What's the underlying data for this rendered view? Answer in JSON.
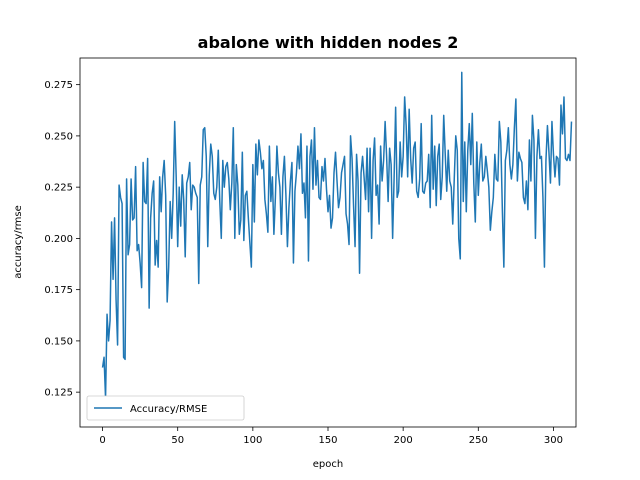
{
  "chart_data": {
    "type": "line",
    "title": "abalone with hidden nodes 2",
    "xlabel": "epoch",
    "ylabel": "accuracy/rmse",
    "xlim": [
      -15,
      315
    ],
    "ylim": [
      0.108,
      0.288
    ],
    "xticks": [
      0,
      50,
      100,
      150,
      200,
      250,
      300
    ],
    "yticks": [
      0.125,
      0.15,
      0.175,
      0.2,
      0.225,
      0.25,
      0.275
    ],
    "ytick_labels": [
      "0.125",
      "0.150",
      "0.175",
      "0.200",
      "0.225",
      "0.250",
      "0.275"
    ],
    "grid": false,
    "legend": {
      "placement": "lower-left",
      "entries": [
        "Accuracy/RMSE"
      ]
    },
    "series": [
      {
        "name": "Accuracy/RMSE",
        "color": "#1f77b4",
        "x_start": 0,
        "x_step": 1,
        "values": [
          0.137,
          0.142,
          0.122,
          0.163,
          0.15,
          0.16,
          0.208,
          0.18,
          0.21,
          0.17,
          0.148,
          0.226,
          0.22,
          0.217,
          0.142,
          0.141,
          0.229,
          0.192,
          0.197,
          0.229,
          0.209,
          0.21,
          0.235,
          0.194,
          0.197,
          0.188,
          0.176,
          0.237,
          0.218,
          0.217,
          0.239,
          0.166,
          0.21,
          0.222,
          0.228,
          0.187,
          0.199,
          0.186,
          0.23,
          0.213,
          0.23,
          0.238,
          0.221,
          0.169,
          0.186,
          0.218,
          0.2,
          0.222,
          0.257,
          0.23,
          0.196,
          0.225,
          0.206,
          0.231,
          0.219,
          0.191,
          0.227,
          0.23,
          0.237,
          0.214,
          0.226,
          0.225,
          0.222,
          0.22,
          0.178,
          0.226,
          0.23,
          0.253,
          0.254,
          0.24,
          0.196,
          0.231,
          0.246,
          0.24,
          0.222,
          0.219,
          0.225,
          0.243,
          0.218,
          0.2,
          0.238,
          0.225,
          0.235,
          0.237,
          0.229,
          0.214,
          0.227,
          0.254,
          0.2,
          0.236,
          0.226,
          0.202,
          0.209,
          0.242,
          0.199,
          0.221,
          0.223,
          0.21,
          0.198,
          0.186,
          0.236,
          0.208,
          0.246,
          0.231,
          0.248,
          0.242,
          0.234,
          0.238,
          0.219,
          0.212,
          0.203,
          0.245,
          0.218,
          0.23,
          0.202,
          0.22,
          0.245,
          0.232,
          0.225,
          0.202,
          0.23,
          0.24,
          0.221,
          0.196,
          0.215,
          0.228,
          0.237,
          0.188,
          0.223,
          0.232,
          0.245,
          0.234,
          0.251,
          0.222,
          0.227,
          0.21,
          0.245,
          0.189,
          0.24,
          0.248,
          0.224,
          0.254,
          0.226,
          0.238,
          0.22,
          0.219,
          0.235,
          0.228,
          0.239,
          0.224,
          0.213,
          0.221,
          0.205,
          0.21,
          0.232,
          0.242,
          0.228,
          0.215,
          0.22,
          0.232,
          0.236,
          0.24,
          0.212,
          0.207,
          0.197,
          0.25,
          0.239,
          0.216,
          0.196,
          0.241,
          0.228,
          0.183,
          0.232,
          0.24,
          0.23,
          0.219,
          0.244,
          0.213,
          0.244,
          0.2,
          0.238,
          0.249,
          0.221,
          0.226,
          0.207,
          0.245,
          0.228,
          0.238,
          0.257,
          0.24,
          0.218,
          0.244,
          0.236,
          0.2,
          0.23,
          0.264,
          0.22,
          0.223,
          0.247,
          0.23,
          0.24,
          0.269,
          0.255,
          0.23,
          0.263,
          0.239,
          0.227,
          0.244,
          0.247,
          0.223,
          0.22,
          0.229,
          0.256,
          0.223,
          0.222,
          0.227,
          0.228,
          0.241,
          0.215,
          0.26,
          0.224,
          0.245,
          0.216,
          0.24,
          0.246,
          0.219,
          0.23,
          0.26,
          0.241,
          0.223,
          0.243,
          0.228,
          0.225,
          0.207,
          0.229,
          0.25,
          0.243,
          0.2,
          0.19,
          0.281,
          0.218,
          0.247,
          0.213,
          0.243,
          0.256,
          0.236,
          0.261,
          0.227,
          0.208,
          0.247,
          0.221,
          0.237,
          0.246,
          0.228,
          0.23,
          0.24,
          0.233,
          0.225,
          0.204,
          0.213,
          0.22,
          0.241,
          0.229,
          0.228,
          0.257,
          0.247,
          0.214,
          0.186,
          0.238,
          0.243,
          0.254,
          0.236,
          0.229,
          0.236,
          0.254,
          0.268,
          0.228,
          0.242,
          0.239,
          0.237,
          0.22,
          0.217,
          0.228,
          0.214,
          0.248,
          0.228,
          0.26,
          0.248,
          0.2,
          0.24,
          0.253,
          0.239,
          0.24,
          0.22,
          0.186,
          0.238,
          0.255,
          0.242,
          0.227,
          0.257,
          0.241,
          0.23,
          0.24,
          0.239,
          0.226,
          0.265,
          0.251,
          0.269,
          0.239,
          0.238,
          0.241,
          0.238,
          0.257
        ]
      }
    ]
  }
}
